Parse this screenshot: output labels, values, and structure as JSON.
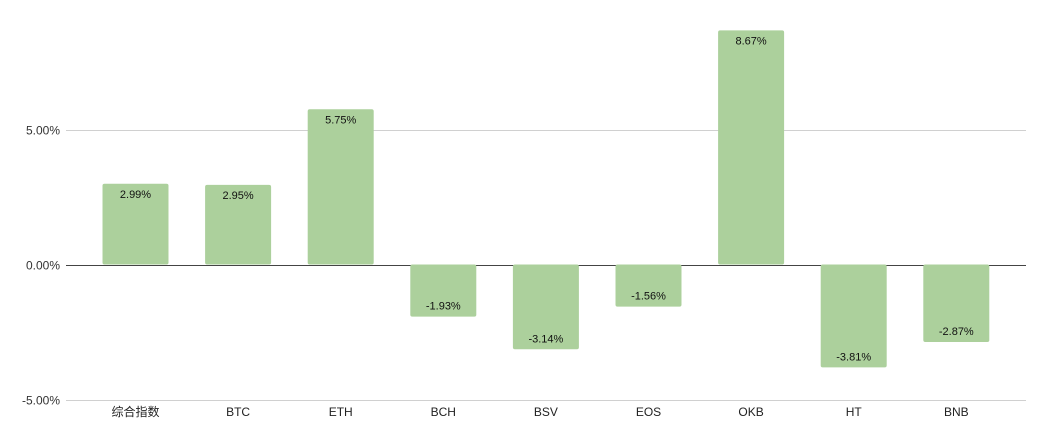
{
  "chart_data": {
    "type": "bar",
    "categories": [
      "综合指数",
      "BTC",
      "ETH",
      "BCH",
      "BSV",
      "EOS",
      "OKB",
      "HT",
      "BNB"
    ],
    "values": [
      2.99,
      2.95,
      5.75,
      -1.93,
      -3.14,
      -1.56,
      8.67,
      -3.81,
      -2.87
    ],
    "data_labels": [
      "2.99%",
      "2.95%",
      "5.75%",
      "-1.93%",
      "-3.14%",
      "-1.56%",
      "8.67%",
      "-3.81%",
      "-2.87%"
    ],
    "yticks": [
      5,
      0,
      -5
    ],
    "ytick_labels": [
      "5.00%",
      "0.00%",
      "-5.00%"
    ],
    "ylim": [
      -5,
      10
    ],
    "grid": true,
    "bar_color": "#acd09c",
    "title": "",
    "xlabel": "",
    "ylabel": ""
  }
}
